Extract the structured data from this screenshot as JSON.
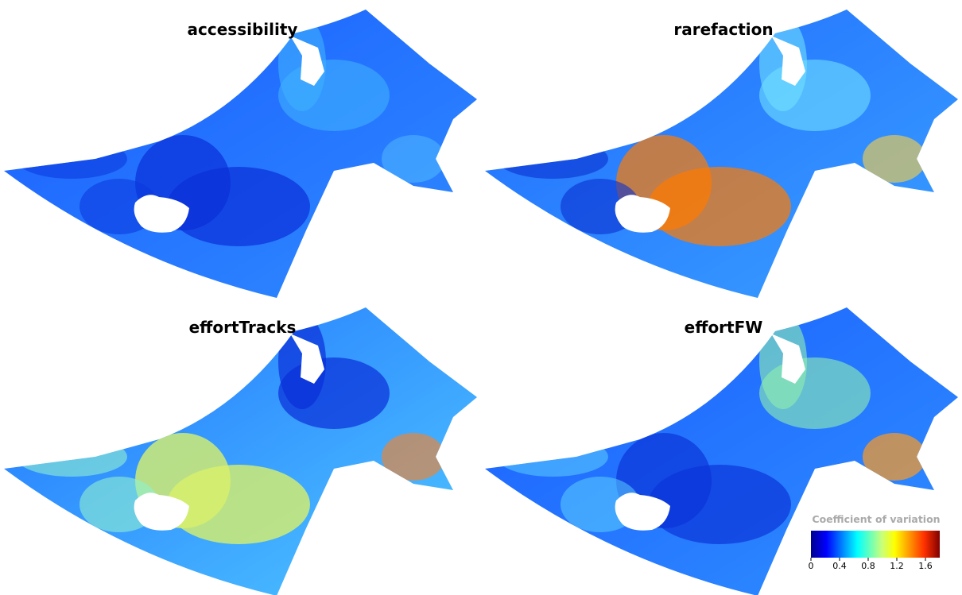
{
  "panels": [
    {
      "title": "accessibility"
    },
    {
      "title": "rarefaction"
    },
    {
      "title": "effortTracks"
    },
    {
      "title": "effortFW"
    }
  ],
  "colorbar": {
    "title": "Coefficient of variation",
    "lim": [
      0,
      1.8
    ],
    "ticks": [
      0,
      0.4,
      0.8,
      1.2,
      1.6
    ]
  }
}
